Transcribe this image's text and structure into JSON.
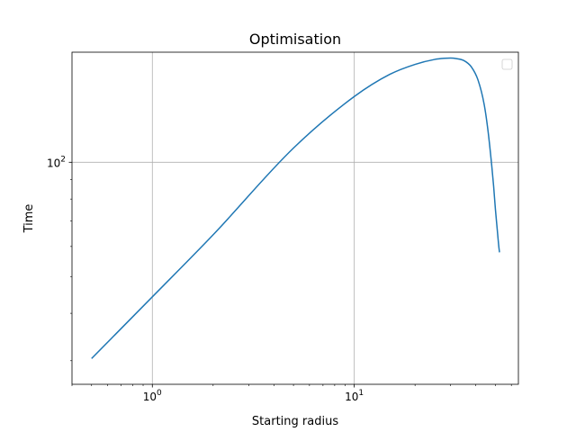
{
  "chart_data": {
    "type": "line",
    "title": "Optimisation",
    "xlabel": "Starting radius",
    "ylabel": "Time",
    "xscale": "log",
    "yscale": "log",
    "xlim": [
      0.4,
      65
    ],
    "ylim": [
      26,
      195
    ],
    "grid": true,
    "legend": {
      "placement": "top-right",
      "entries": []
    },
    "x_ticks": [
      {
        "value": 1,
        "base": "10",
        "exp": "0"
      },
      {
        "value": 10,
        "base": "10",
        "exp": "1"
      }
    ],
    "y_ticks": [
      {
        "value": 100,
        "base": "10",
        "exp": "2"
      }
    ],
    "series": [
      {
        "color": "#1f77b4",
        "points": [
          [
            0.5,
            30.4
          ],
          [
            1.0,
            44.2
          ],
          [
            2.0,
            64.4
          ],
          [
            5.0,
            109
          ],
          [
            10.0,
            149
          ],
          [
            15.0,
            170.5
          ],
          [
            20.0,
            181.1
          ],
          [
            25.0,
            186.6
          ],
          [
            28.0,
            187.9
          ],
          [
            30.0,
            188.2
          ],
          [
            32.0,
            187.6
          ],
          [
            35.0,
            185.2
          ],
          [
            38.0,
            178.4
          ],
          [
            41.0,
            164.8
          ],
          [
            44.0,
            142
          ],
          [
            46.0,
            120.6
          ],
          [
            48.0,
            97.5
          ],
          [
            49.0,
            86.5
          ],
          [
            50.0,
            75.3
          ],
          [
            51.0,
            67
          ],
          [
            52.0,
            59.9
          ],
          [
            52.4,
            57.9
          ]
        ]
      }
    ]
  }
}
